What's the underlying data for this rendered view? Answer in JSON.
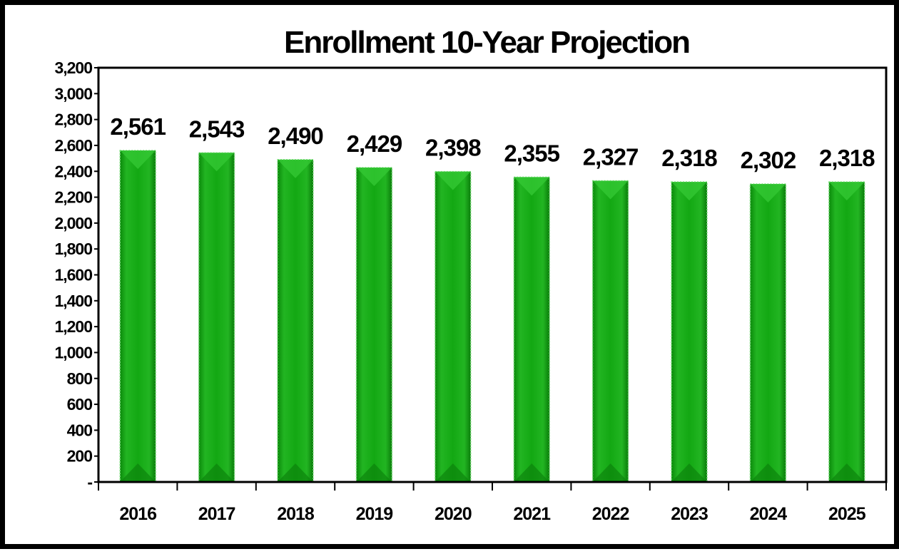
{
  "chart_data": {
    "type": "bar",
    "title": "Enrollment 10-Year Projection",
    "xlabel": "",
    "ylabel": "",
    "categories": [
      "2016",
      "2017",
      "2018",
      "2019",
      "2020",
      "2021",
      "2022",
      "2023",
      "2024",
      "2025"
    ],
    "values": [
      2561,
      2543,
      2490,
      2429,
      2398,
      2355,
      2327,
      2318,
      2302,
      2318
    ],
    "value_labels": [
      "2,561",
      "2,543",
      "2,490",
      "2,429",
      "2,398",
      "2,355",
      "2,327",
      "2,318",
      "2,302",
      "2,318"
    ],
    "ylim": [
      0,
      3200
    ],
    "y_ticks": [
      0,
      200,
      400,
      600,
      800,
      1000,
      1200,
      1400,
      1600,
      1800,
      2000,
      2200,
      2400,
      2600,
      2800,
      3000,
      3200
    ],
    "y_tick_labels": [
      "-",
      "200",
      "400",
      "600",
      "800",
      "1,000",
      "1,200",
      "1,400",
      "1,600",
      "1,800",
      "2,000",
      "2,200",
      "2,400",
      "2,600",
      "2,800",
      "3,000",
      "3,200"
    ],
    "grid": false,
    "legend": "none",
    "colors": {
      "bar_main": "#13a813",
      "bar_dark": "#0a7d0a",
      "bar_light": "#35c935",
      "bar_edge": "#7fe07f",
      "plot_border": "#000000",
      "frame_border": "#000000"
    }
  }
}
